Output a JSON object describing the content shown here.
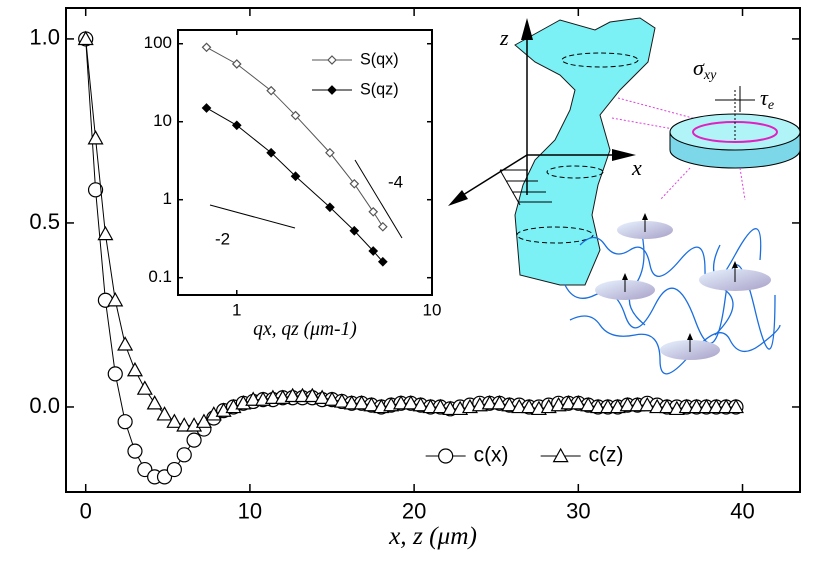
{
  "chart_data": [
    {
      "type": "line",
      "xlabel": "x, z (μm)",
      "x": [
        0,
        0.6,
        1.2,
        1.8,
        2.4,
        3,
        3.6,
        4.2,
        4.8,
        5.4,
        6,
        6.6,
        7.2,
        7.8,
        8.4,
        9,
        9.6,
        10.2,
        10.8,
        11.4,
        12,
        12.6,
        13.2,
        13.8,
        14.4,
        15,
        15.6,
        16.2,
        16.8,
        17.4,
        18,
        18.6,
        19.2,
        19.8,
        20.4,
        21,
        21.6,
        22.2,
        22.8,
        23.4,
        24,
        24.6,
        25.2,
        25.8,
        26.4,
        27,
        27.6,
        28.2,
        28.8,
        29.4,
        30,
        30.6,
        31.2,
        31.8,
        32.4,
        33,
        33.6,
        34.2,
        34.8,
        35.4,
        36,
        36.6,
        37.2,
        37.8,
        38.4,
        39,
        39.6
      ],
      "series": [
        {
          "name": "c(x)",
          "color": "#000000",
          "marker": "circle",
          "values": [
            1.0,
            0.59,
            0.29,
            0.09,
            -0.04,
            -0.12,
            -0.17,
            -0.19,
            -0.19,
            -0.17,
            -0.13,
            -0.09,
            -0.06,
            -0.03,
            -0.01,
            0.0,
            0.01,
            0.015,
            0.02,
            0.02,
            0.025,
            0.025,
            0.025,
            0.025,
            0.02,
            0.02,
            0.015,
            0.01,
            0.01,
            0.005,
            0.0,
            0.005,
            0.01,
            0.01,
            0.005,
            0,
            0,
            -0.005,
            0,
            0.005,
            0.01,
            0.01,
            0.01,
            0.005,
            0.005,
            0,
            0,
            0.005,
            0.01,
            0.01,
            0.01,
            0.005,
            0,
            0,
            0,
            0.005,
            0.005,
            0.01,
            0.005,
            0,
            0,
            0,
            0,
            0,
            0,
            0,
            0
          ]
        },
        {
          "name": "c(z)",
          "color": "#000000",
          "marker": "triangle",
          "values": [
            1.0,
            0.73,
            0.47,
            0.29,
            0.17,
            0.1,
            0.05,
            0.01,
            -0.02,
            -0.04,
            -0.05,
            -0.05,
            -0.04,
            -0.02,
            -0.01,
            0.0,
            0.01,
            0.02,
            0.02,
            0.025,
            0.025,
            0.03,
            0.03,
            0.03,
            0.025,
            0.02,
            0.015,
            0.01,
            0.01,
            0.005,
            0.0,
            0.005,
            0.01,
            0.01,
            0.005,
            0,
            0,
            -0.005,
            -0.005,
            0,
            0.005,
            0.01,
            0.01,
            0.005,
            0,
            0,
            -0.005,
            0,
            0.005,
            0.01,
            0.01,
            0.005,
            0,
            0,
            0,
            0.005,
            0.005,
            0.005,
            0,
            0,
            -0.005,
            0,
            0,
            0,
            0,
            0,
            0
          ]
        }
      ],
      "xlim": [
        -1.2,
        43.5
      ],
      "ylim": [
        -0.231,
        1.084
      ],
      "xticks": [
        0,
        10,
        20,
        30,
        40
      ],
      "yticks": [
        {
          "value": 0,
          "label": "0.0"
        },
        {
          "value": 0.5,
          "label": "0.5"
        },
        {
          "value": 1,
          "label": "1.0"
        }
      ],
      "legend": "lower-right"
    },
    {
      "type": "line",
      "log_x": true,
      "log_y": true,
      "xlabel": "qx, qz (μm-1)",
      "x": [
        0.7,
        1,
        1.5,
        2,
        3,
        4,
        5,
        5.6
      ],
      "series": [
        {
          "name": "S(qx)",
          "color": "#555555",
          "marker": "diamond-open",
          "values": [
            90,
            55,
            25,
            12,
            4,
            1.6,
            0.7,
            0.45
          ]
        },
        {
          "name": "S(qz)",
          "color": "#000000",
          "marker": "diamond-filled",
          "values": [
            15,
            9,
            4,
            2,
            0.8,
            0.4,
            0.22,
            0.16
          ]
        }
      ],
      "xlim": [
        0.5,
        10
      ],
      "ylim": [
        0.06,
        150
      ],
      "xticks": [
        1,
        10
      ],
      "yticks": [
        0.1,
        1,
        10,
        100
      ],
      "annotations": [
        "-2",
        "-4"
      ],
      "legend": "upper-right"
    }
  ],
  "diagram": {
    "z": "z",
    "x": "x",
    "sigma": "σ",
    "sigma_sub": "xy",
    "tau": "τ",
    "tau_sub": "e"
  }
}
